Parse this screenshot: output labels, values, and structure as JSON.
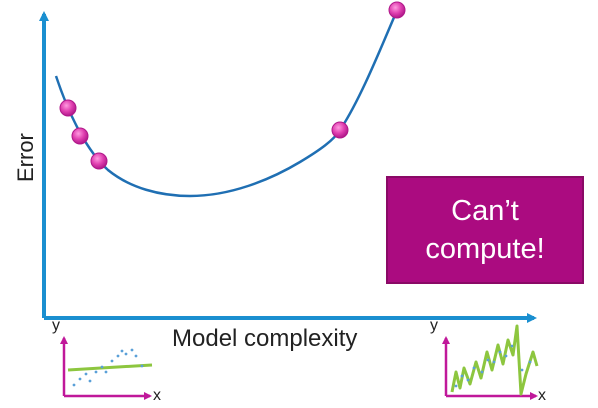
{
  "diagram": {
    "y_axis_label": "Error",
    "x_axis_label": "Model complexity",
    "callout": {
      "line1": "Can’t",
      "line2": "compute!"
    },
    "left_inset": {
      "y_label": "y",
      "x_label": "x"
    },
    "right_inset": {
      "y_label": "y",
      "x_label": "x"
    }
  },
  "colors": {
    "axis": "#1a8fd0",
    "curve": "#1f6fb3",
    "point_fill": "#e040b0",
    "point_stroke": "#b0188a",
    "callout_bg": "#ab0b80",
    "inset_axis": "#c0189a",
    "inset_fit": "#8dc63f",
    "inset_points": "#5aa0d8"
  },
  "chart_data": {
    "type": "line",
    "xlabel": "Model complexity",
    "ylabel": "Error",
    "curve_shape": "U-shaped error curve",
    "marked_points": 5
  }
}
